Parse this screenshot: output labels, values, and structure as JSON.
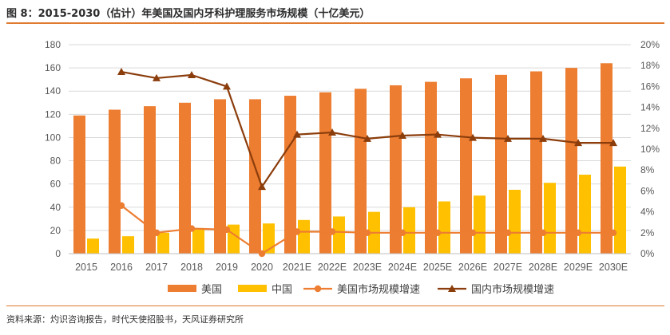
{
  "header": {
    "title": "图 8：2015-2030（估计）年美国及国内牙科护理服务市场规模（十亿美元）"
  },
  "footer": {
    "source": "资料来源：灼识咨询报告，时代天使招股书，天风证券研究所"
  },
  "colors": {
    "us_bar": "#ed7d31",
    "cn_bar": "#ffc000",
    "us_growth": "#ed7d31",
    "cn_growth": "#8b3d0c",
    "accent_rule": "#e07a2f",
    "grid": "#d9d9d9",
    "tick": "#595959"
  },
  "chart_data": {
    "type": "bar",
    "title": "2015-2030（估计）年美国及国内牙科护理服务市场规模（十亿美元）",
    "categories": [
      "2015",
      "2016",
      "2017",
      "2018",
      "2019",
      "2020",
      "2021E",
      "2022E",
      "2023E",
      "2024E",
      "2025E",
      "2026E",
      "2027E",
      "2028E",
      "2029E",
      "2030E"
    ],
    "y_left": {
      "min": 0,
      "max": 180,
      "step": 20,
      "ticks": [
        "0",
        "20",
        "40",
        "60",
        "80",
        "100",
        "120",
        "140",
        "160",
        "180"
      ]
    },
    "y_right": {
      "min": 0,
      "max": 20,
      "step": 2,
      "ticks": [
        "0%",
        "2%",
        "4%",
        "6%",
        "8%",
        "10%",
        "12%",
        "14%",
        "16%",
        "18%",
        "20%"
      ]
    },
    "grid": true,
    "legend_position": "bottom",
    "series": [
      {
        "name": "美国",
        "kind": "bar",
        "axis": "left",
        "color_key": "us_bar",
        "values": [
          119,
          124,
          127,
          130,
          133,
          133,
          136,
          139,
          142,
          145,
          148,
          151,
          154,
          157,
          160,
          164
        ]
      },
      {
        "name": "中国",
        "kind": "bar",
        "axis": "left",
        "color_key": "cn_bar",
        "values": [
          13,
          15,
          18,
          22,
          25,
          26,
          29,
          32,
          36,
          40,
          45,
          50,
          55,
          61,
          68,
          75
        ]
      },
      {
        "name": "美国市场规模增速",
        "kind": "line",
        "marker": "circle",
        "axis": "right",
        "color_key": "us_growth",
        "values": [
          null,
          4.6,
          2.0,
          2.4,
          2.3,
          0.0,
          2.1,
          2.1,
          2.0,
          2.0,
          2.0,
          2.0,
          2.0,
          2.0,
          2.0,
          2.0
        ]
      },
      {
        "name": "国内市场规模增速",
        "kind": "line",
        "marker": "triangle",
        "axis": "right",
        "color_key": "cn_growth",
        "values": [
          null,
          17.4,
          16.8,
          17.1,
          16.0,
          6.4,
          11.4,
          11.6,
          11.0,
          11.3,
          11.4,
          11.1,
          11.0,
          11.0,
          10.6,
          10.6
        ]
      }
    ]
  }
}
